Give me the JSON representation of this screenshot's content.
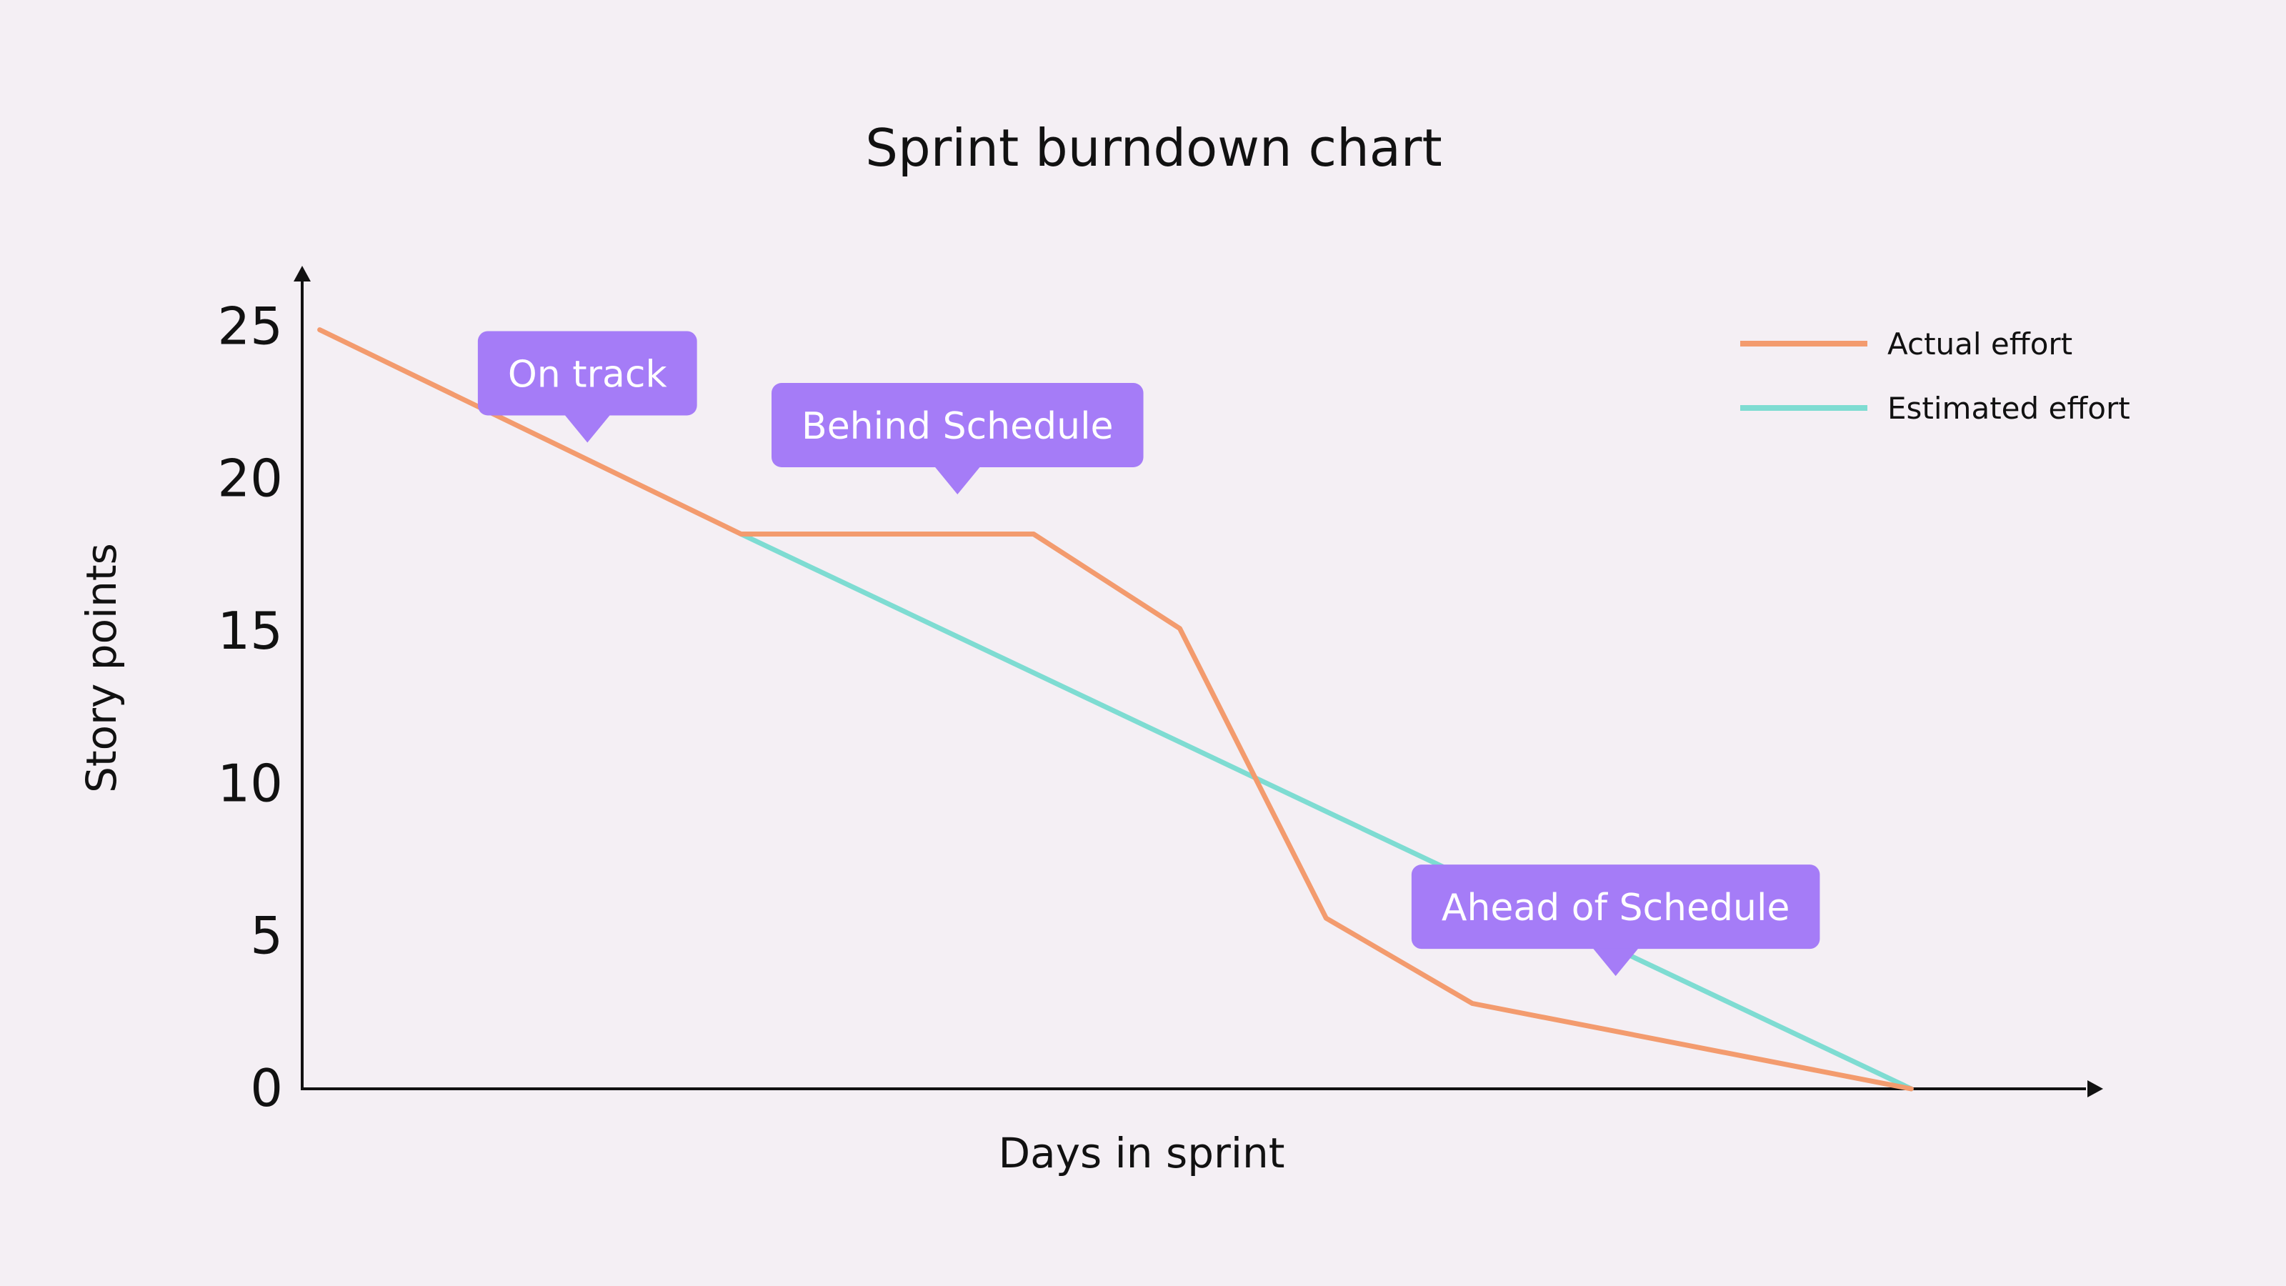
{
  "chart_data": {
    "type": "line",
    "title": "Sprint burndown chart",
    "xlabel": "Days in sprint",
    "ylabel": "Story points",
    "ylim": [
      0,
      27
    ],
    "yticks": [
      0,
      5,
      10,
      15,
      20,
      25
    ],
    "xlim": [
      0,
      12
    ],
    "grid": false,
    "legend_position": "top-right",
    "series": [
      {
        "name": "Actual effort",
        "color": "#f39b6e",
        "points": [
          {
            "x": 0.12,
            "y": 24.9
          },
          {
            "x": 3.0,
            "y": 18.2
          },
          {
            "x": 5.0,
            "y": 18.2
          },
          {
            "x": 6.0,
            "y": 15.1
          },
          {
            "x": 7.0,
            "y": 5.6
          },
          {
            "x": 8.0,
            "y": 2.8
          },
          {
            "x": 11.0,
            "y": 0
          }
        ]
      },
      {
        "name": "Estimated effort",
        "color": "#7edcd2",
        "points": [
          {
            "x": 3.0,
            "y": 18.2
          },
          {
            "x": 11.0,
            "y": 0
          }
        ]
      }
    ],
    "annotations": [
      {
        "text": "On track",
        "x": 1.95,
        "y": 21.2
      },
      {
        "text": "Behind Schedule",
        "x": 4.48,
        "y": 19.5
      },
      {
        "text": "Ahead of Schedule",
        "x": 8.98,
        "y": 3.7
      }
    ],
    "callout_color": "#a57cf7"
  }
}
